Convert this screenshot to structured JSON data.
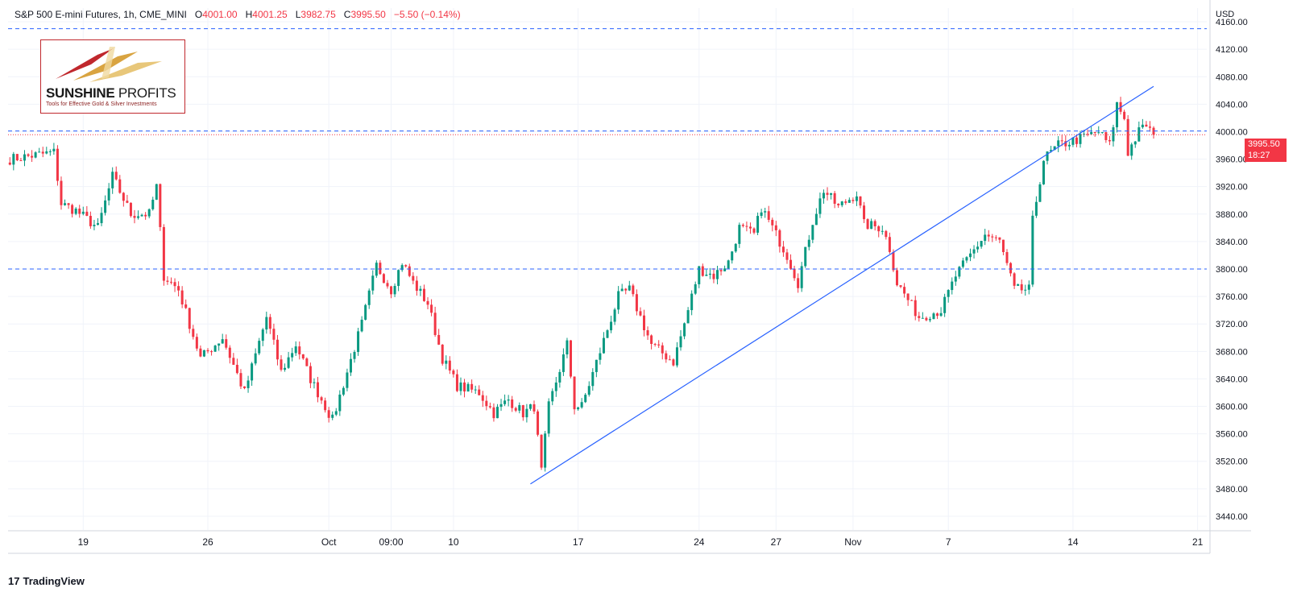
{
  "header": {
    "symbol": "S&P 500 E-mini Futures, 1h, CME_MINI",
    "o_label": "O",
    "o_value": "4001.00",
    "h_label": "H",
    "h_value": "4001.25",
    "l_label": "L",
    "l_value": "3982.75",
    "c_label": "C",
    "c_value": "3995.50",
    "change": "−5.50 (−0.14%)"
  },
  "logo": {
    "name_bold": "SUNSHINE",
    "name_light": "PROFITS",
    "tagline": "Tools for Effective Gold & Silver Investments"
  },
  "price_tag": {
    "price": "3995.50",
    "countdown": "18:27"
  },
  "branding": {
    "tradingview": "TradingView",
    "tv_mark": "17"
  },
  "colors": {
    "up": "#089981",
    "down": "#f23645",
    "line": "#2962ff",
    "grid": "#f0f3fa"
  },
  "chart_data": {
    "type": "candlestick",
    "title": "S&P 500 E-mini Futures, 1h, CME_MINI",
    "y_unit_label": "USD",
    "ylim": [
      3420,
      4180
    ],
    "y_ticks": [
      "4160.00",
      "4120.00",
      "4080.00",
      "4040.00",
      "4000.00",
      "3960.00",
      "3920.00",
      "3880.00",
      "3840.00",
      "3800.00",
      "3760.00",
      "3720.00",
      "3680.00",
      "3640.00",
      "3600.00",
      "3560.00",
      "3520.00",
      "3480.00",
      "3440.00"
    ],
    "x_ticks": [
      {
        "label": "19",
        "idx": 20
      },
      {
        "label": "26",
        "idx": 54
      },
      {
        "label": "Oct",
        "idx": 87
      },
      {
        "label": "09:00",
        "idx": 104
      },
      {
        "label": "10",
        "idx": 121
      },
      {
        "label": "17",
        "idx": 155
      },
      {
        "label": "24",
        "idx": 188
      },
      {
        "label": "27",
        "idx": 209
      },
      {
        "label": "Nov",
        "idx": 230
      },
      {
        "label": "7",
        "idx": 256
      },
      {
        "label": "14",
        "idx": 290
      },
      {
        "label": "21",
        "idx": 324
      }
    ],
    "x_count": 327,
    "anchors": [
      [
        0,
        3960
      ],
      [
        12,
        3970
      ],
      [
        14,
        3895
      ],
      [
        18,
        3885
      ],
      [
        24,
        3860
      ],
      [
        28,
        3935
      ],
      [
        33,
        3880
      ],
      [
        38,
        3880
      ],
      [
        40,
        3920
      ],
      [
        42,
        3790
      ],
      [
        46,
        3770
      ],
      [
        52,
        3670
      ],
      [
        58,
        3700
      ],
      [
        64,
        3620
      ],
      [
        70,
        3730
      ],
      [
        74,
        3650
      ],
      [
        78,
        3690
      ],
      [
        82,
        3640
      ],
      [
        88,
        3580
      ],
      [
        96,
        3720
      ],
      [
        100,
        3805
      ],
      [
        104,
        3770
      ],
      [
        107,
        3810
      ],
      [
        110,
        3780
      ],
      [
        114,
        3750
      ],
      [
        118,
        3670
      ],
      [
        122,
        3630
      ],
      [
        128,
        3620
      ],
      [
        132,
        3590
      ],
      [
        136,
        3610
      ],
      [
        140,
        3590
      ],
      [
        143,
        3600
      ],
      [
        145,
        3505
      ],
      [
        147,
        3600
      ],
      [
        152,
        3690
      ],
      [
        154,
        3600
      ],
      [
        156,
        3600
      ],
      [
        161,
        3680
      ],
      [
        166,
        3760
      ],
      [
        169,
        3770
      ],
      [
        175,
        3690
      ],
      [
        181,
        3665
      ],
      [
        184,
        3720
      ],
      [
        188,
        3800
      ],
      [
        192,
        3790
      ],
      [
        196,
        3810
      ],
      [
        199,
        3860
      ],
      [
        203,
        3850
      ],
      [
        205,
        3890
      ],
      [
        209,
        3850
      ],
      [
        212,
        3820
      ],
      [
        215,
        3780
      ],
      [
        219,
        3870
      ],
      [
        222,
        3915
      ],
      [
        226,
        3890
      ],
      [
        231,
        3910
      ],
      [
        233,
        3865
      ],
      [
        238,
        3860
      ],
      [
        240,
        3830
      ],
      [
        242,
        3780
      ],
      [
        248,
        3730
      ],
      [
        254,
        3740
      ],
      [
        258,
        3790
      ],
      [
        262,
        3820
      ],
      [
        266,
        3850
      ],
      [
        270,
        3840
      ],
      [
        274,
        3770
      ],
      [
        278,
        3770
      ],
      [
        279,
        3870
      ],
      [
        282,
        3960
      ],
      [
        286,
        3980
      ],
      [
        292,
        3990
      ],
      [
        297,
        4000
      ],
      [
        300,
        3980
      ],
      [
        302,
        4040
      ],
      [
        304,
        4020
      ],
      [
        305,
        3970
      ],
      [
        308,
        4000
      ],
      [
        310,
        4010
      ],
      [
        312,
        3995.5
      ]
    ],
    "horizontal_levels": [
      4150,
      4001,
      3800
    ],
    "trendline": {
      "from": {
        "idx": 142,
        "price": 3487
      },
      "to": {
        "idx": 312,
        "price": 4066
      }
    },
    "last_close": 3995.5
  }
}
